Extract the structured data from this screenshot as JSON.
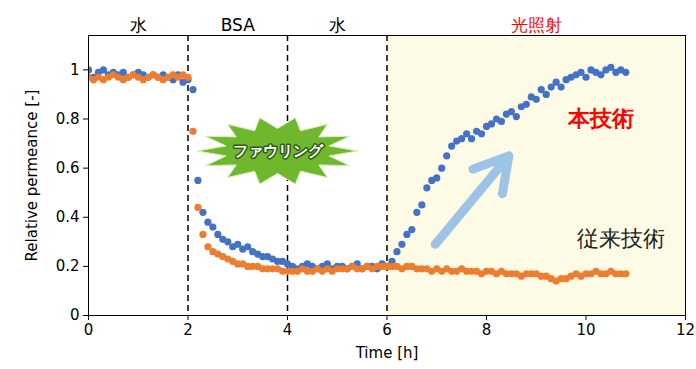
{
  "chart_data": {
    "type": "scatter",
    "x_label": "Time [h]",
    "y_label": "Relative permeance [-]",
    "xlim": [
      0,
      12
    ],
    "xticks": [
      0,
      2,
      4,
      6,
      8,
      10,
      12
    ],
    "ylim": [
      0,
      1.14
    ],
    "yticks": [
      0,
      0.2,
      0.4,
      0.6,
      0.8,
      1
    ],
    "x": [
      0,
      0.1,
      0.2,
      0.3,
      0.4,
      0.5,
      0.6,
      0.7,
      0.8,
      0.9,
      1.0,
      1.1,
      1.2,
      1.3,
      1.4,
      1.5,
      1.6,
      1.7,
      1.8,
      1.9,
      2.0,
      2.1,
      2.2,
      2.3,
      2.4,
      2.5,
      2.6,
      2.7,
      2.8,
      2.9,
      3.0,
      3.1,
      3.2,
      3.3,
      3.4,
      3.5,
      3.6,
      3.7,
      3.8,
      3.9,
      4.0,
      4.1,
      4.2,
      4.3,
      4.4,
      4.5,
      4.6,
      4.7,
      4.8,
      4.9,
      5.0,
      5.1,
      5.2,
      5.3,
      5.4,
      5.5,
      5.6,
      5.7,
      5.8,
      5.9,
      6.0,
      6.1,
      6.2,
      6.3,
      6.4,
      6.5,
      6.6,
      6.7,
      6.8,
      6.9,
      7.0,
      7.1,
      7.2,
      7.3,
      7.4,
      7.5,
      7.6,
      7.7,
      7.8,
      7.9,
      8.0,
      8.1,
      8.2,
      8.3,
      8.4,
      8.5,
      8.6,
      8.7,
      8.8,
      8.9,
      9.0,
      9.1,
      9.2,
      9.3,
      9.4,
      9.5,
      9.6,
      9.7,
      9.8,
      9.9,
      10.0,
      10.1,
      10.2,
      10.3,
      10.4,
      10.5,
      10.6,
      10.7,
      10.8
    ],
    "series": [
      {
        "name": "本技術",
        "color": "#4472c4",
        "marker": "circle",
        "label_x": 10.3,
        "label_y": 0.8,
        "label_color": "#ff0000",
        "values": [
          1.0,
          0.97,
          0.99,
          1.0,
          0.98,
          0.99,
          0.98,
          0.99,
          0.97,
          0.98,
          0.99,
          0.98,
          0.97,
          0.98,
          0.97,
          0.98,
          0.97,
          0.96,
          0.98,
          0.95,
          0.96,
          0.92,
          0.55,
          0.42,
          0.38,
          0.36,
          0.33,
          0.31,
          0.3,
          0.28,
          0.29,
          0.27,
          0.28,
          0.26,
          0.25,
          0.24,
          0.24,
          0.23,
          0.22,
          0.22,
          0.21,
          0.2,
          0.19,
          0.2,
          0.21,
          0.2,
          0.19,
          0.2,
          0.21,
          0.19,
          0.2,
          0.2,
          0.19,
          0.2,
          0.21,
          0.19,
          0.2,
          0.2,
          0.19,
          0.21,
          0.2,
          0.22,
          0.26,
          0.29,
          0.33,
          0.35,
          0.42,
          0.45,
          0.52,
          0.55,
          0.56,
          0.6,
          0.65,
          0.69,
          0.71,
          0.72,
          0.74,
          0.72,
          0.75,
          0.74,
          0.77,
          0.78,
          0.8,
          0.79,
          0.82,
          0.83,
          0.81,
          0.85,
          0.86,
          0.89,
          0.88,
          0.92,
          0.9,
          0.93,
          0.95,
          0.93,
          0.96,
          0.97,
          0.98,
          0.99,
          0.97,
          1.0,
          0.99,
          0.98,
          1.0,
          1.01,
          0.99,
          1.0,
          0.99
        ]
      },
      {
        "name": "従来技術",
        "color": "#ed7d31",
        "marker": "circle",
        "label_x": 10.7,
        "label_y": 0.31,
        "label_color": "#222222",
        "values": [
          0.97,
          0.96,
          0.97,
          0.96,
          0.97,
          0.98,
          0.97,
          0.96,
          0.97,
          0.98,
          0.97,
          0.96,
          0.97,
          0.98,
          0.97,
          0.96,
          0.97,
          0.98,
          0.97,
          0.98,
          0.97,
          0.75,
          0.44,
          0.33,
          0.28,
          0.26,
          0.25,
          0.24,
          0.23,
          0.22,
          0.21,
          0.21,
          0.2,
          0.2,
          0.2,
          0.19,
          0.19,
          0.19,
          0.19,
          0.18,
          0.18,
          0.18,
          0.18,
          0.19,
          0.18,
          0.18,
          0.19,
          0.18,
          0.19,
          0.18,
          0.19,
          0.19,
          0.19,
          0.2,
          0.19,
          0.19,
          0.2,
          0.19,
          0.2,
          0.2,
          0.2,
          0.2,
          0.2,
          0.19,
          0.2,
          0.2,
          0.19,
          0.19,
          0.19,
          0.18,
          0.19,
          0.18,
          0.19,
          0.18,
          0.18,
          0.19,
          0.18,
          0.18,
          0.18,
          0.17,
          0.18,
          0.18,
          0.17,
          0.18,
          0.17,
          0.17,
          0.17,
          0.16,
          0.17,
          0.17,
          0.17,
          0.16,
          0.16,
          0.15,
          0.14,
          0.15,
          0.15,
          0.16,
          0.17,
          0.16,
          0.17,
          0.17,
          0.18,
          0.17,
          0.17,
          0.18,
          0.17,
          0.17,
          0.17
        ]
      }
    ],
    "phases": [
      {
        "label": "水",
        "start": 0,
        "end": 2,
        "color": "#000000"
      },
      {
        "label": "BSA",
        "start": 2,
        "end": 4,
        "color": "#000000"
      },
      {
        "label": "水",
        "start": 4,
        "end": 6,
        "color": "#000000"
      },
      {
        "label": "光照射",
        "start": 6,
        "end": 12,
        "color": "#ff0000",
        "background": "#fdfbe6"
      }
    ],
    "annotations": [
      {
        "type": "burst",
        "text": "ファウリング",
        "x": 3.8,
        "y": 0.67,
        "color": "#6fb72c"
      },
      {
        "type": "arrow",
        "x1": 6.97,
        "y1": 0.29,
        "x2": 8.45,
        "y2": 0.65,
        "color": "#9dc3e6"
      }
    ]
  }
}
